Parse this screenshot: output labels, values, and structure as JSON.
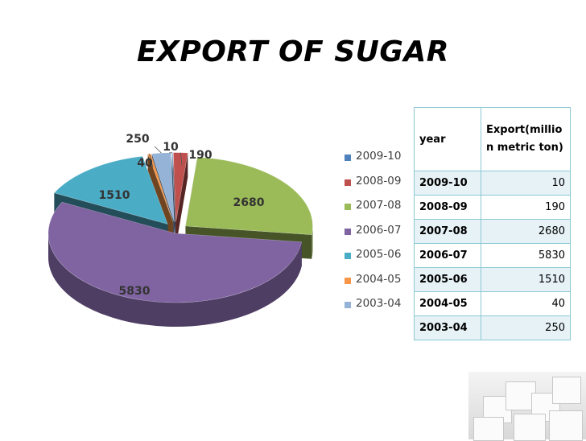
{
  "slide": {
    "title": "EXPORT OF SUGAR"
  },
  "chart_data": {
    "type": "pie",
    "title": "",
    "categories": [
      "2009-10",
      "2008-09",
      "2007-08",
      "2006-07",
      "2005-06",
      "2004-05",
      "2003-04"
    ],
    "values": [
      10,
      190,
      2680,
      5830,
      1510,
      40,
      250
    ],
    "colors": [
      "#4f81bd",
      "#c0504d",
      "#9bbb59",
      "#8064a2",
      "#4bacc6",
      "#f79646",
      "#95b3d7"
    ],
    "three_d": true,
    "exploded": true,
    "legend_position": "right"
  },
  "table": {
    "header_year": "year",
    "header_export": "Export(million metric ton)",
    "header_export_lines": [
      "Export(millio",
      "n metric ton)"
    ],
    "rows": [
      {
        "year": "2009-10",
        "value": "10"
      },
      {
        "year": "2008-09",
        "value": "190"
      },
      {
        "year": "2007-08",
        "value": "2680"
      },
      {
        "year": "2006-07",
        "value": "5830"
      },
      {
        "year": "2005-06",
        "value": "1510"
      },
      {
        "year": "2004-05",
        "value": "40"
      },
      {
        "year": "2003-04",
        "value": "250"
      }
    ]
  },
  "decoration": {
    "image": "sugar-cubes-photo"
  }
}
